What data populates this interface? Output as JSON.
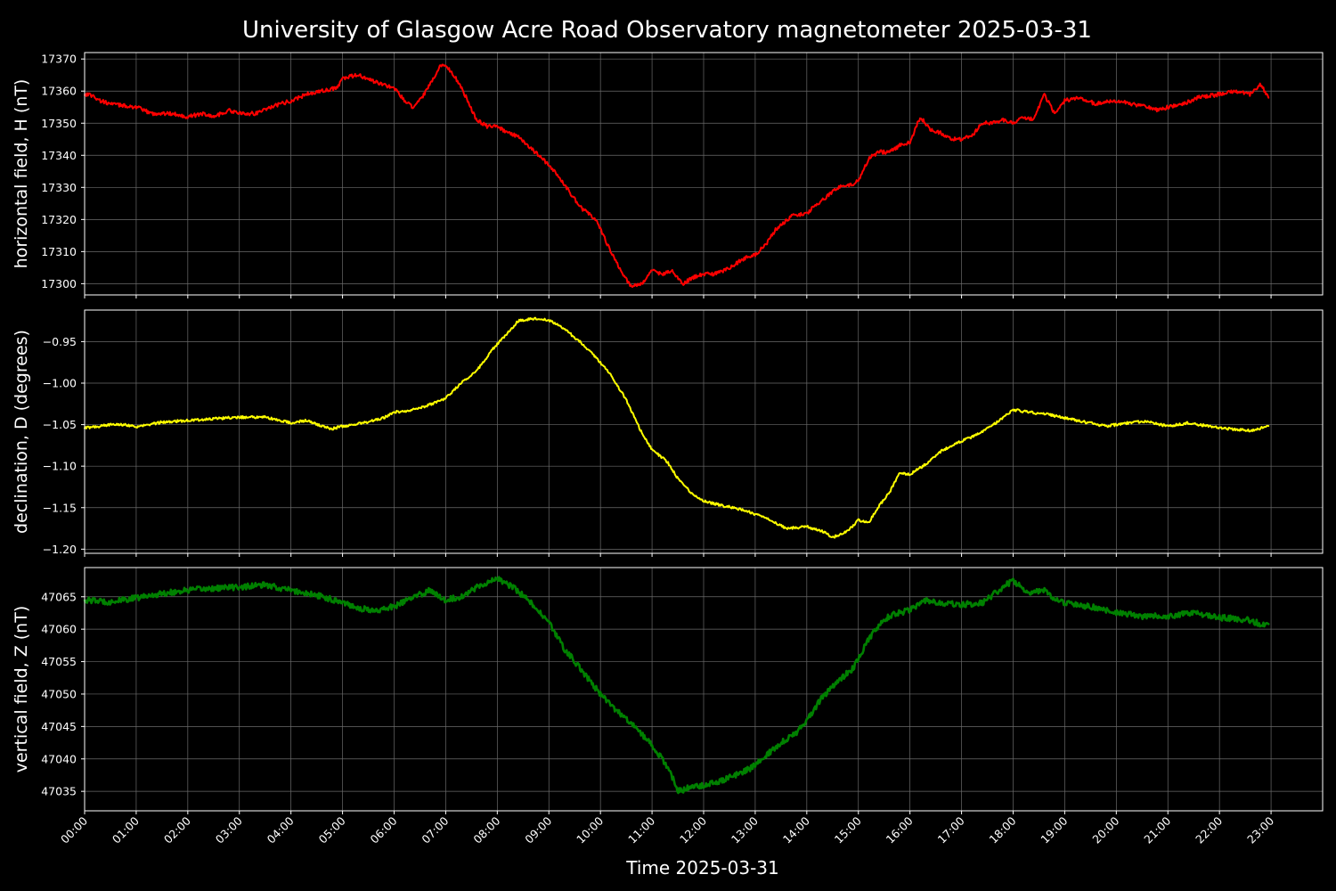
{
  "chart_data": {
    "type": "line",
    "title": "University of Glasgow Acre Road Observatory magnetometer 2025-03-31",
    "xlabel": "Time 2025-03-31",
    "x_ticks": [
      "00:00",
      "01:00",
      "02:00",
      "03:00",
      "04:00",
      "05:00",
      "06:00",
      "07:00",
      "08:00",
      "09:00",
      "10:00",
      "11:00",
      "12:00",
      "13:00",
      "14:00",
      "15:00",
      "16:00",
      "17:00",
      "18:00",
      "19:00",
      "20:00",
      "21:00",
      "22:00",
      "23:00"
    ],
    "xlim_hours": [
      0,
      24
    ],
    "grid": true,
    "panels": [
      {
        "name": "horizontal",
        "ylabel": "horizontal field, H (nT)",
        "color": "#ff0000",
        "noise": 0.6,
        "ylim": [
          17296.5,
          17372
        ],
        "y_ticks": [
          17300,
          17310,
          17320,
          17330,
          17340,
          17350,
          17360,
          17370
        ],
        "y_tick_labels": [
          "17300",
          "17310",
          "17320",
          "17330",
          "17340",
          "17350",
          "17360",
          "17370"
        ],
        "x": [
          0,
          0.1,
          0.3,
          0.5,
          1.0,
          1.3,
          1.7,
          2.0,
          2.3,
          2.5,
          2.8,
          3.0,
          3.3,
          3.6,
          4.0,
          4.3,
          4.6,
          4.9,
          5.0,
          5.3,
          5.6,
          6.0,
          6.2,
          6.35,
          6.5,
          6.7,
          6.9,
          7.0,
          7.2,
          7.4,
          7.6,
          7.8,
          8.0,
          8.2,
          8.4,
          8.6,
          8.8,
          9.0,
          9.3,
          9.6,
          9.9,
          10.0,
          10.2,
          10.4,
          10.6,
          10.8,
          11.0,
          11.2,
          11.4,
          11.6,
          11.8,
          12.0,
          12.2,
          12.4,
          12.6,
          12.8,
          13.0,
          13.2,
          13.4,
          13.7,
          14.0,
          14.3,
          14.6,
          14.9,
          15.0,
          15.2,
          15.4,
          15.6,
          15.8,
          16.0,
          16.2,
          16.4,
          16.6,
          16.8,
          17.0,
          17.2,
          17.4,
          17.6,
          17.8,
          18.0,
          18.2,
          18.4,
          18.6,
          18.8,
          19.0,
          19.3,
          19.6,
          20.0,
          20.3,
          20.6,
          20.8,
          21.0,
          21.3,
          21.6,
          22.0,
          22.3,
          22.6,
          22.8,
          22.95
        ],
        "values": [
          17359,
          17359,
          17357,
          17356,
          17355,
          17353,
          17353,
          17352,
          17353,
          17352,
          17354,
          17353,
          17353,
          17355,
          17357,
          17359,
          17360,
          17361,
          17364,
          17365,
          17363,
          17361,
          17357,
          17355,
          17357,
          17362,
          17368,
          17368,
          17364,
          17358,
          17351,
          17349,
          17349,
          17347,
          17346,
          17343,
          17340,
          17337,
          17331,
          17324,
          17320,
          17317,
          17310,
          17304,
          17299,
          17300,
          17304,
          17303,
          17304,
          17300,
          17302,
          17303,
          17303,
          17304,
          17306,
          17308,
          17309,
          17312,
          17317,
          17321,
          17322,
          17326,
          17330,
          17331,
          17332,
          17339,
          17341,
          17341,
          17343,
          17344,
          17352,
          17348,
          17347,
          17345,
          17345,
          17346,
          17350,
          17350,
          17351,
          17350,
          17352,
          17351,
          17359,
          17353,
          17357,
          17358,
          17356,
          17357,
          17356,
          17355,
          17354,
          17355,
          17356,
          17358,
          17359,
          17360,
          17359,
          17362,
          17358
        ]
      },
      {
        "name": "declination",
        "ylabel": "declination, D (degrees)",
        "color": "#ffff00",
        "noise": 0.0015,
        "ylim": [
          -1.205,
          -0.912
        ],
        "y_ticks": [
          -1.2,
          -1.15,
          -1.1,
          -1.05,
          -1.0,
          -0.95
        ],
        "y_tick_labels": [
          "−1.20",
          "−1.15",
          "−1.10",
          "−1.05",
          "−1.00",
          "−0.95"
        ],
        "x": [
          0,
          0.3,
          0.6,
          0.9,
          1.0,
          1.5,
          2.0,
          2.5,
          3.0,
          3.5,
          4.0,
          4.3,
          4.6,
          4.8,
          5.0,
          5.4,
          5.8,
          6.0,
          6.3,
          6.6,
          7.0,
          7.3,
          7.6,
          7.9,
          8.2,
          8.4,
          8.7,
          9.0,
          9.3,
          9.6,
          9.9,
          10.2,
          10.5,
          10.8,
          11.0,
          11.3,
          11.5,
          11.8,
          12.0,
          12.4,
          12.8,
          13.0,
          13.3,
          13.6,
          14.0,
          14.3,
          14.5,
          14.8,
          15.0,
          15.2,
          15.4,
          15.6,
          15.8,
          16.0,
          16.3,
          16.6,
          16.9,
          17.2,
          17.5,
          17.8,
          18.0,
          18.3,
          18.7,
          19.0,
          19.4,
          19.8,
          20.2,
          20.6,
          21.0,
          21.4,
          21.8,
          22.2,
          22.6,
          22.95
        ],
        "values": [
          -1.054,
          -1.052,
          -1.049,
          -1.051,
          -1.053,
          -1.047,
          -1.045,
          -1.043,
          -1.041,
          -1.041,
          -1.048,
          -1.045,
          -1.052,
          -1.055,
          -1.052,
          -1.048,
          -1.042,
          -1.035,
          -1.033,
          -1.028,
          -1.018,
          -1.0,
          -0.985,
          -0.96,
          -0.94,
          -0.925,
          -0.922,
          -0.924,
          -0.935,
          -0.95,
          -0.968,
          -0.99,
          -1.02,
          -1.06,
          -1.08,
          -1.095,
          -1.115,
          -1.135,
          -1.142,
          -1.148,
          -1.153,
          -1.158,
          -1.165,
          -1.175,
          -1.173,
          -1.178,
          -1.186,
          -1.178,
          -1.165,
          -1.168,
          -1.148,
          -1.132,
          -1.108,
          -1.11,
          -1.098,
          -1.082,
          -1.072,
          -1.065,
          -1.055,
          -1.042,
          -1.032,
          -1.035,
          -1.038,
          -1.042,
          -1.047,
          -1.052,
          -1.048,
          -1.046,
          -1.052,
          -1.048,
          -1.052,
          -1.055,
          -1.057,
          -1.052
        ]
      },
      {
        "name": "vertical",
        "ylabel": "vertical field, Z (nT)",
        "color": "#008000",
        "noise": 0.45,
        "ylim": [
          47032,
          47069.5
        ],
        "y_ticks": [
          47035,
          47040,
          47045,
          47050,
          47055,
          47060,
          47065
        ],
        "y_tick_labels": [
          "47035",
          "47040",
          "47045",
          "47050",
          "47055",
          "47060",
          "47065"
        ],
        "x": [
          0,
          0.5,
          1.0,
          1.5,
          2.0,
          2.5,
          3.0,
          3.5,
          4.0,
          4.5,
          5.0,
          5.3,
          5.6,
          6.0,
          6.4,
          6.7,
          7.0,
          7.3,
          7.6,
          8.0,
          8.3,
          8.6,
          9.0,
          9.3,
          9.6,
          10.0,
          10.3,
          10.6,
          10.9,
          11.0,
          11.2,
          11.4,
          11.5,
          11.7,
          12.0,
          12.3,
          12.6,
          12.9,
          13.2,
          13.5,
          13.8,
          14.0,
          14.3,
          14.6,
          14.9,
          15.0,
          15.2,
          15.4,
          15.6,
          15.8,
          16.0,
          16.3,
          16.6,
          17.0,
          17.4,
          17.8,
          18.0,
          18.3,
          18.6,
          18.8,
          19.0,
          19.5,
          20.0,
          20.5,
          21.0,
          21.5,
          22.0,
          22.5,
          22.95
        ],
        "values": [
          47064.5,
          47064.2,
          47064.8,
          47065.5,
          47066.0,
          47066.3,
          47066.5,
          47066.8,
          47066.0,
          47065.2,
          47064.2,
          47063.3,
          47062.8,
          47063.5,
          47065.0,
          47066.0,
          47064.5,
          47065.0,
          47066.5,
          47067.8,
          47066.5,
          47064.5,
          47061.0,
          47057.0,
          47054.0,
          47050.0,
          47047.5,
          47045.5,
          47043.0,
          47042.0,
          47040.0,
          47037.0,
          47035.0,
          47035.5,
          47036.0,
          47036.5,
          47037.5,
          47038.5,
          47040.5,
          47042.5,
          47044.0,
          47046.0,
          47049.5,
          47052.0,
          47054.0,
          47055.5,
          47058.5,
          47060.5,
          47062.0,
          47062.5,
          47063.0,
          47064.5,
          47064.0,
          47063.8,
          47064.0,
          47066.5,
          47067.5,
          47065.5,
          47066.0,
          47064.5,
          47064.0,
          47063.5,
          47062.5,
          47062.0,
          47062.0,
          47062.5,
          47061.8,
          47061.5,
          47060.5
        ]
      }
    ]
  }
}
